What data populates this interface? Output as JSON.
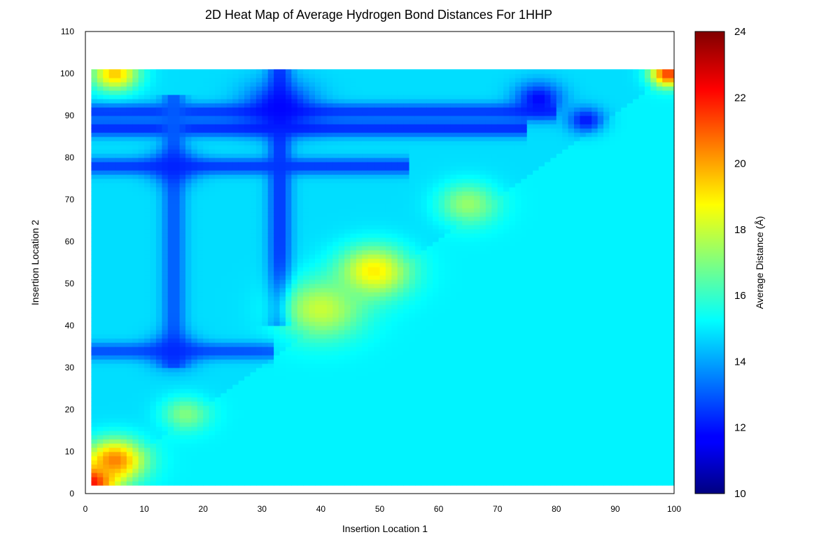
{
  "chart_data": {
    "type": "heatmap",
    "title": "2D Heat Map of Average Hydrogen Bond Distances For 1HHP",
    "xlabel": "Insertion Location 1",
    "ylabel": "Insertion Location 2",
    "colorbar_label": "Average Distance (Å)",
    "xlim": [
      0,
      100
    ],
    "ylim": [
      0,
      110
    ],
    "x_ticks": [
      0,
      10,
      20,
      30,
      40,
      50,
      60,
      70,
      80,
      90,
      100
    ],
    "y_ticks": [
      0,
      10,
      20,
      30,
      40,
      50,
      60,
      70,
      80,
      90,
      100,
      110
    ],
    "colorbar_range": [
      10,
      24
    ],
    "colorbar_ticks": [
      10,
      12,
      14,
      16,
      18,
      20,
      22,
      24
    ],
    "colormap": "jet",
    "data_extent": {
      "x": [
        1,
        100
      ],
      "y": [
        2,
        101
      ]
    },
    "baseline_values": {
      "upper_triangle": 14.8,
      "lower_triangle": 15.1
    },
    "features": [
      {
        "x": 1,
        "y": 3,
        "value": 22.5,
        "spread": 4
      },
      {
        "x": 5,
        "y": 8,
        "value": 20.5,
        "spread": 5
      },
      {
        "x": 5,
        "y": 100,
        "value": 19.5,
        "spread": 4
      },
      {
        "x": 99,
        "y": 100,
        "value": 21.5,
        "spread": 3
      },
      {
        "x": 49,
        "y": 53,
        "value": 19.0,
        "spread": 6
      },
      {
        "x": 40,
        "y": 44,
        "value": 18.0,
        "spread": 7
      },
      {
        "x": 65,
        "y": 69,
        "value": 17.3,
        "spread": 5
      },
      {
        "x": 17,
        "y": 19,
        "value": 17.0,
        "spread": 4
      },
      {
        "x": 33,
        "y": 92,
        "value": 11.8,
        "spread": 6
      },
      {
        "x": 77,
        "y": 94,
        "value": 11.8,
        "spread": 4
      },
      {
        "x": 85,
        "y": 89,
        "value": 12.0,
        "spread": 3
      },
      {
        "x": 15,
        "y": 78,
        "value": 12.2,
        "spread": 4
      },
      {
        "x": 15,
        "y": 34,
        "value": 12.3,
        "spread": 4
      }
    ],
    "bands": [
      {
        "axis": "y",
        "position": 91,
        "value": 12.5,
        "from": 1,
        "to": 80
      },
      {
        "axis": "y",
        "position": 87,
        "value": 12.3,
        "from": 1,
        "to": 75
      },
      {
        "axis": "y",
        "position": 78,
        "value": 12.5,
        "from": 1,
        "to": 55
      },
      {
        "axis": "y",
        "position": 34,
        "value": 12.8,
        "from": 1,
        "to": 32
      },
      {
        "axis": "x",
        "position": 33,
        "value": 12.5,
        "from": 40,
        "to": 101
      },
      {
        "axis": "x",
        "position": 15,
        "value": 13.0,
        "from": 30,
        "to": 95
      }
    ]
  }
}
